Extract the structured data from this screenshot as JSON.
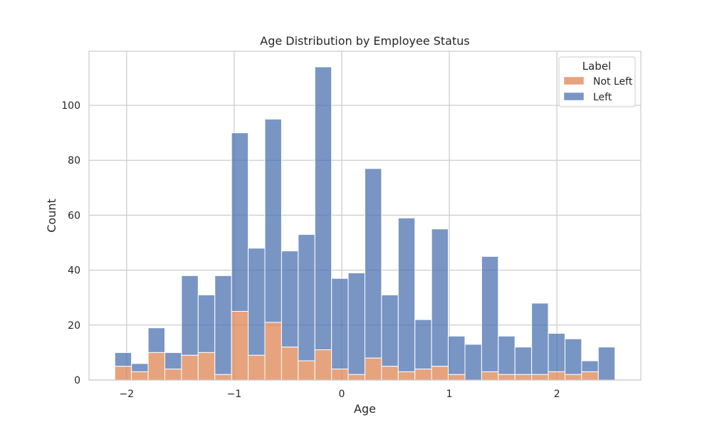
{
  "chart_data": {
    "type": "bar",
    "stacked": true,
    "title": "Age Distribution by Employee Status",
    "xlabel": "Age",
    "ylabel": "Count",
    "xlim": [
      -2.35,
      2.78
    ],
    "ylim": [
      0,
      119.7
    ],
    "xticks": [
      -2,
      -1,
      0,
      1,
      2
    ],
    "xtick_labels": [
      "−2",
      "−1",
      "0",
      "1",
      "2"
    ],
    "yticks": [
      0,
      20,
      40,
      60,
      80,
      100
    ],
    "grid": true,
    "bin_width": 0.155,
    "bin_left_edges": [
      -2.11,
      -1.955,
      -1.8,
      -1.645,
      -1.49,
      -1.335,
      -1.18,
      -1.025,
      -0.87,
      -0.715,
      -0.56,
      -0.405,
      -0.25,
      -0.095,
      0.06,
      0.215,
      0.37,
      0.525,
      0.68,
      0.835,
      0.99,
      1.145,
      1.3,
      1.455,
      1.61,
      1.765,
      1.92,
      2.075,
      2.23,
      2.385
    ],
    "series": [
      {
        "name": "Not Left",
        "color": "#dd8452",
        "values": [
          5,
          3,
          10,
          4,
          9,
          10,
          2,
          25,
          9,
          21,
          12,
          7,
          11,
          4,
          2,
          8,
          5,
          3,
          4,
          5,
          2,
          0,
          3,
          2,
          2,
          2,
          3,
          2,
          3,
          0
        ]
      },
      {
        "name": "Left",
        "color": "#4c72b0",
        "values": [
          5,
          3,
          9,
          6,
          29,
          21,
          36,
          65,
          39,
          74,
          35,
          46,
          103,
          33,
          37,
          69,
          26,
          56,
          18,
          50,
          14,
          13,
          42,
          14,
          10,
          26,
          14,
          13,
          4,
          12
        ]
      }
    ],
    "legend": {
      "title": "Label",
      "position": "top-right",
      "entries": [
        "Not Left",
        "Left"
      ]
    }
  }
}
